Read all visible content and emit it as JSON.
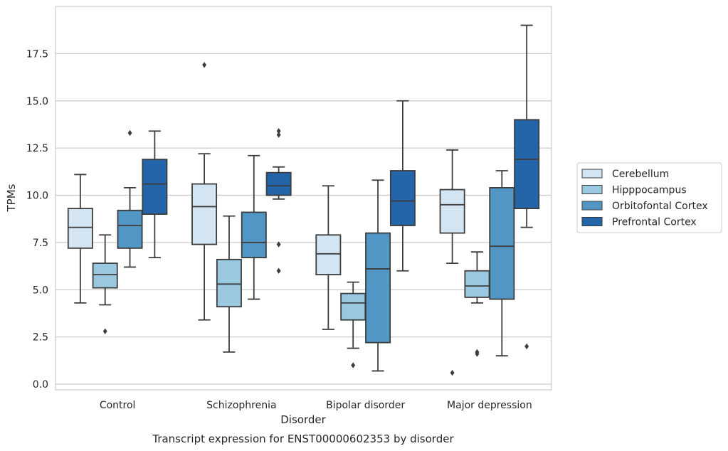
{
  "chart_data": {
    "type": "box",
    "title": "",
    "caption": "Transcript expression for ENST00000602353 by disorder",
    "xlabel": "Disorder",
    "ylabel": "TPMs",
    "ylim": [
      -0.3,
      20.0
    ],
    "yticks": [
      0.0,
      2.5,
      5.0,
      7.5,
      10.0,
      12.5,
      15.0,
      17.5
    ],
    "ytick_labels": [
      "0.0",
      "2.5",
      "5.0",
      "7.5",
      "10.0",
      "12.5",
      "15.0",
      "17.5"
    ],
    "grid": "horizontal",
    "legend_position": "right",
    "categories": [
      "Control",
      "Schizophrenia",
      "Bipolar disorder",
      "Major depression"
    ],
    "series": [
      {
        "name": "Cerebellum",
        "color": "#d3e4f3",
        "boxes": [
          {
            "whisker_low": 4.3,
            "q1": 7.2,
            "median": 8.3,
            "q3": 9.3,
            "whisker_high": 11.1,
            "outliers": []
          },
          {
            "whisker_low": 3.4,
            "q1": 7.4,
            "median": 9.4,
            "q3": 10.6,
            "whisker_high": 12.2,
            "outliers": [
              16.9
            ]
          },
          {
            "whisker_low": 2.9,
            "q1": 5.8,
            "median": 6.9,
            "q3": 7.9,
            "whisker_high": 10.5,
            "outliers": []
          },
          {
            "whisker_low": 6.4,
            "q1": 8.0,
            "median": 9.5,
            "q3": 10.3,
            "whisker_high": 12.4,
            "outliers": [
              0.6
            ]
          }
        ]
      },
      {
        "name": "Hipppocampus",
        "color": "#9ac8e0",
        "boxes": [
          {
            "whisker_low": 4.2,
            "q1": 5.1,
            "median": 5.8,
            "q3": 6.4,
            "whisker_high": 7.9,
            "outliers": [
              2.8
            ]
          },
          {
            "whisker_low": 1.7,
            "q1": 4.1,
            "median": 5.3,
            "q3": 6.6,
            "whisker_high": 8.9,
            "outliers": []
          },
          {
            "whisker_low": 1.9,
            "q1": 3.4,
            "median": 4.3,
            "q3": 4.8,
            "whisker_high": 5.4,
            "outliers": [
              1.0
            ]
          },
          {
            "whisker_low": 4.3,
            "q1": 4.6,
            "median": 5.2,
            "q3": 6.0,
            "whisker_high": 7.0,
            "outliers": [
              1.7,
              1.6
            ]
          }
        ]
      },
      {
        "name": "Orbitofontal Cortex",
        "color": "#5296c6",
        "boxes": [
          {
            "whisker_low": 6.2,
            "q1": 7.2,
            "median": 8.4,
            "q3": 9.2,
            "whisker_high": 10.4,
            "outliers": [
              13.3
            ]
          },
          {
            "whisker_low": 4.5,
            "q1": 6.7,
            "median": 7.5,
            "q3": 9.1,
            "whisker_high": 12.1,
            "outliers": []
          },
          {
            "whisker_low": 0.7,
            "q1": 2.2,
            "median": 6.1,
            "q3": 8.0,
            "whisker_high": 10.8,
            "outliers": []
          },
          {
            "whisker_low": 1.5,
            "q1": 4.5,
            "median": 7.3,
            "q3": 10.4,
            "whisker_high": 11.3,
            "outliers": []
          }
        ]
      },
      {
        "name": "Prefrontal Cortex",
        "color": "#2464a9",
        "boxes": [
          {
            "whisker_low": 6.7,
            "q1": 9.0,
            "median": 10.6,
            "q3": 11.9,
            "whisker_high": 13.4,
            "outliers": []
          },
          {
            "whisker_low": 9.8,
            "q1": 10.0,
            "median": 10.5,
            "q3": 11.2,
            "whisker_high": 11.5,
            "outliers": [
              13.4,
              13.2,
              7.4,
              6.0
            ]
          },
          {
            "whisker_low": 6.0,
            "q1": 8.4,
            "median": 9.7,
            "q3": 11.3,
            "whisker_high": 15.0,
            "outliers": []
          },
          {
            "whisker_low": 8.3,
            "q1": 9.3,
            "median": 11.9,
            "q3": 14.0,
            "whisker_high": 19.0,
            "outliers": [
              2.0
            ]
          }
        ]
      }
    ]
  }
}
